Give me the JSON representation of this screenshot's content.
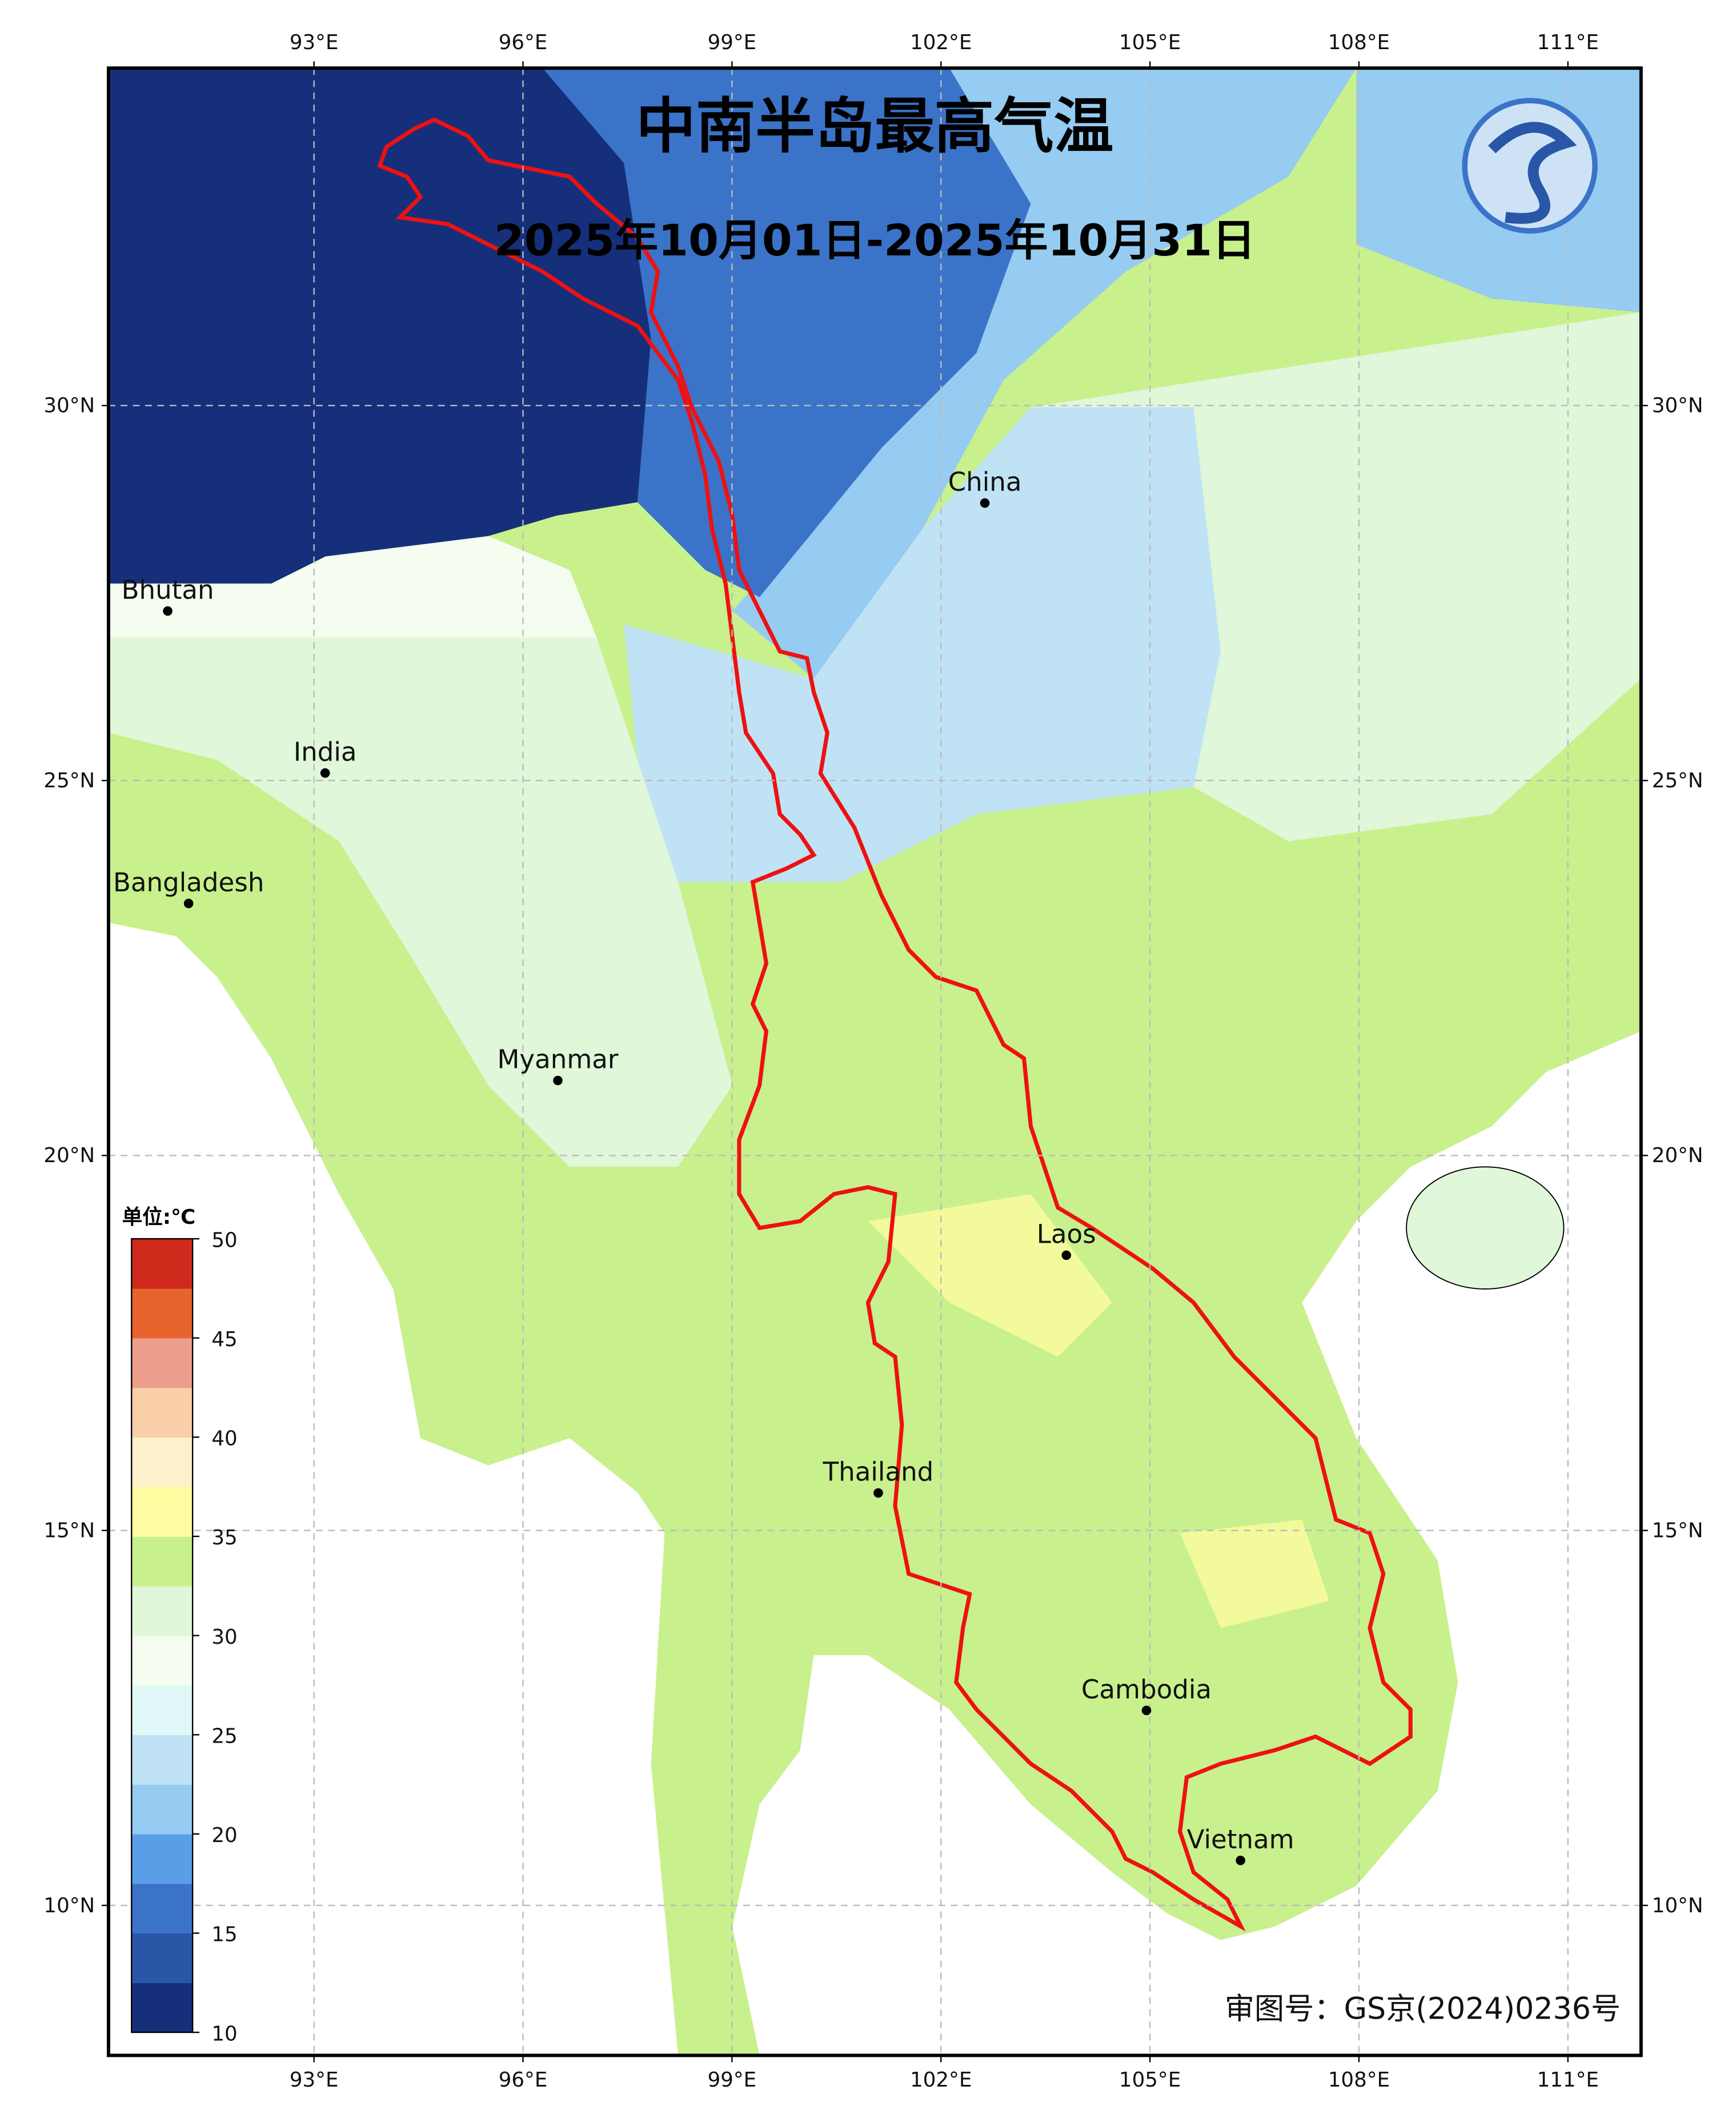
{
  "map": {
    "title": "中南半岛最高气温",
    "subtitle": "2025年10月01日-2025年10月31日",
    "approval": "审图号：GS京(2024)0236号",
    "lonlim": [
      90.05,
      112.05
    ],
    "latlim": [
      8.0,
      34.5
    ],
    "lonticks": [
      {
        "value": 93,
        "label": "93°E"
      },
      {
        "value": 96,
        "label": "96°E"
      },
      {
        "value": 99,
        "label": "99°E"
      },
      {
        "value": 102,
        "label": "102°E"
      },
      {
        "value": 105,
        "label": "105°E"
      },
      {
        "value": 108,
        "label": "108°E"
      },
      {
        "value": 111,
        "label": "111°E"
      }
    ],
    "latticks": [
      {
        "value": 10,
        "label": "10°N"
      },
      {
        "value": 15,
        "label": "15°N"
      },
      {
        "value": 20,
        "label": "20°N"
      },
      {
        "value": 25,
        "label": "25°N"
      },
      {
        "value": 30,
        "label": "30°N"
      }
    ],
    "places": [
      {
        "name": "China",
        "lon": 102.63,
        "lat": 28.7
      },
      {
        "name": "Bhutan",
        "lon": 90.9,
        "lat": 27.26
      },
      {
        "name": "India",
        "lon": 93.16,
        "lat": 25.1
      },
      {
        "name": "Bangladesh",
        "lon": 91.2,
        "lat": 23.36
      },
      {
        "name": "Myanmar",
        "lon": 96.5,
        "lat": 21.0
      },
      {
        "name": "Laos",
        "lon": 103.8,
        "lat": 18.67
      },
      {
        "name": "Thailand",
        "lon": 101.1,
        "lat": 15.5
      },
      {
        "name": "Cambodia",
        "lon": 104.95,
        "lat": 12.6
      },
      {
        "name": "Vietnam",
        "lon": 106.3,
        "lat": 10.6
      }
    ],
    "colorbar": {
      "unit": "单位:℃",
      "ticks": [
        10,
        15,
        20,
        25,
        30,
        35,
        40,
        45,
        50
      ],
      "colors": [
        "#162f7a",
        "#2a56a8",
        "#3b73c8",
        "#5b9ee8",
        "#96cbf2",
        "#bfe3f5",
        "#dff7f7",
        "#f4fdf0",
        "#e0f7d9",
        "#c8f08c",
        "#fdfca0",
        "#fdf1cc",
        "#f8cfa8",
        "#ee9e8c",
        "#e8642e",
        "#cf2a1c"
      ]
    }
  }
}
